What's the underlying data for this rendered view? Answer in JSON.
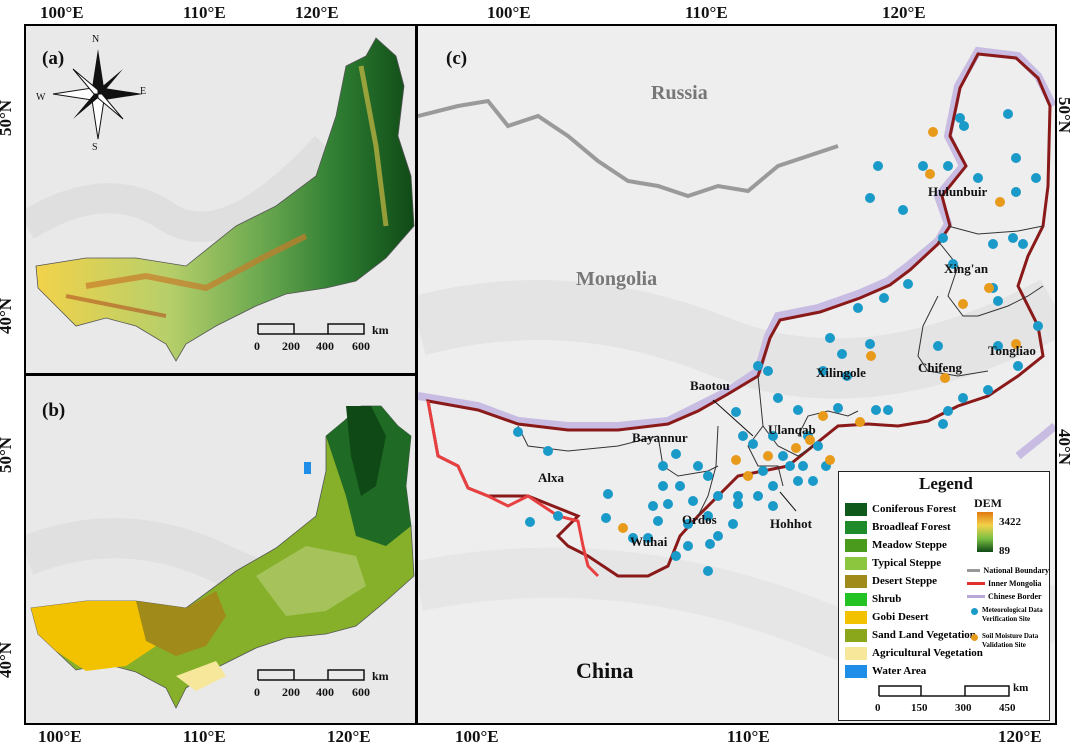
{
  "axes": {
    "top_left": [
      "100°E",
      "110°E",
      "120°E"
    ],
    "top_right": [
      "100°E",
      "110°E",
      "120°E"
    ],
    "bottom_left": [
      "100°E",
      "110°E",
      "120°E"
    ],
    "bottom_right": [
      "100°E",
      "110°E",
      "120°E"
    ],
    "lat_a": [
      "50°N",
      "40°N"
    ],
    "lat_b": [
      "50°N",
      "40°N"
    ],
    "lat_c": [
      "50°N",
      "40°N"
    ]
  },
  "panel_a": {
    "label": "(a)",
    "compass": {
      "n": "N",
      "s": "S",
      "e": "E",
      "w": "W"
    },
    "scale": {
      "ticks": [
        "0",
        "200",
        "400",
        "600"
      ],
      "unit": "km"
    }
  },
  "panel_b": {
    "label": "(b)",
    "scale": {
      "ticks": [
        "0",
        "200",
        "400",
        "600"
      ],
      "unit": "km"
    }
  },
  "panel_c": {
    "label": "(c)",
    "countries": {
      "russia": "Russia",
      "mongolia": "Mongolia",
      "china": "China"
    },
    "cities": [
      "Hulunbuir",
      "Xing'an",
      "Tongliao",
      "Chifeng",
      "Xilingole",
      "Baotou",
      "Ulanqab",
      "Bayannur",
      "Alxa",
      "Ordos",
      "Hohhot",
      "Wuhai"
    ],
    "scale": {
      "ticks": [
        "0",
        "150",
        "300",
        "450"
      ],
      "unit": "km"
    }
  },
  "legend": {
    "title": "Legend",
    "classes": [
      {
        "name": "Coniferous Forest",
        "color": "#0f5a1a"
      },
      {
        "name": "Broadleaf Forest",
        "color": "#1f8a2a"
      },
      {
        "name": "Meadow Steppe",
        "color": "#4a9a1e"
      },
      {
        "name": "Typical Steppe",
        "color": "#8cc63f"
      },
      {
        "name": "Desert Steppe",
        "color": "#a08a1a"
      },
      {
        "name": "Shrub",
        "color": "#22c322"
      },
      {
        "name": "Gobi Desert",
        "color": "#f2c200"
      },
      {
        "name": "Sand Land Vegetation",
        "color": "#8aa61a"
      },
      {
        "name": "Agricultural Vegetation",
        "color": "#f6e79a"
      },
      {
        "name": "Water Area",
        "color": "#1e8ee8"
      }
    ],
    "dem": {
      "title": "DEM",
      "max": "3422",
      "min": "89"
    },
    "lines": [
      {
        "name": "National Boundary",
        "color": "#999999"
      },
      {
        "name": "Inner Mongolia",
        "color": "#e03030"
      },
      {
        "name": "Chinese Border",
        "color": "#b8a8d8"
      }
    ],
    "sites": [
      {
        "name": "Meteorological Data Verification Site",
        "color": "#1a9ac8"
      },
      {
        "name": "Soil Moisture Data Validation Site",
        "color": "#e89a1a"
      }
    ]
  }
}
